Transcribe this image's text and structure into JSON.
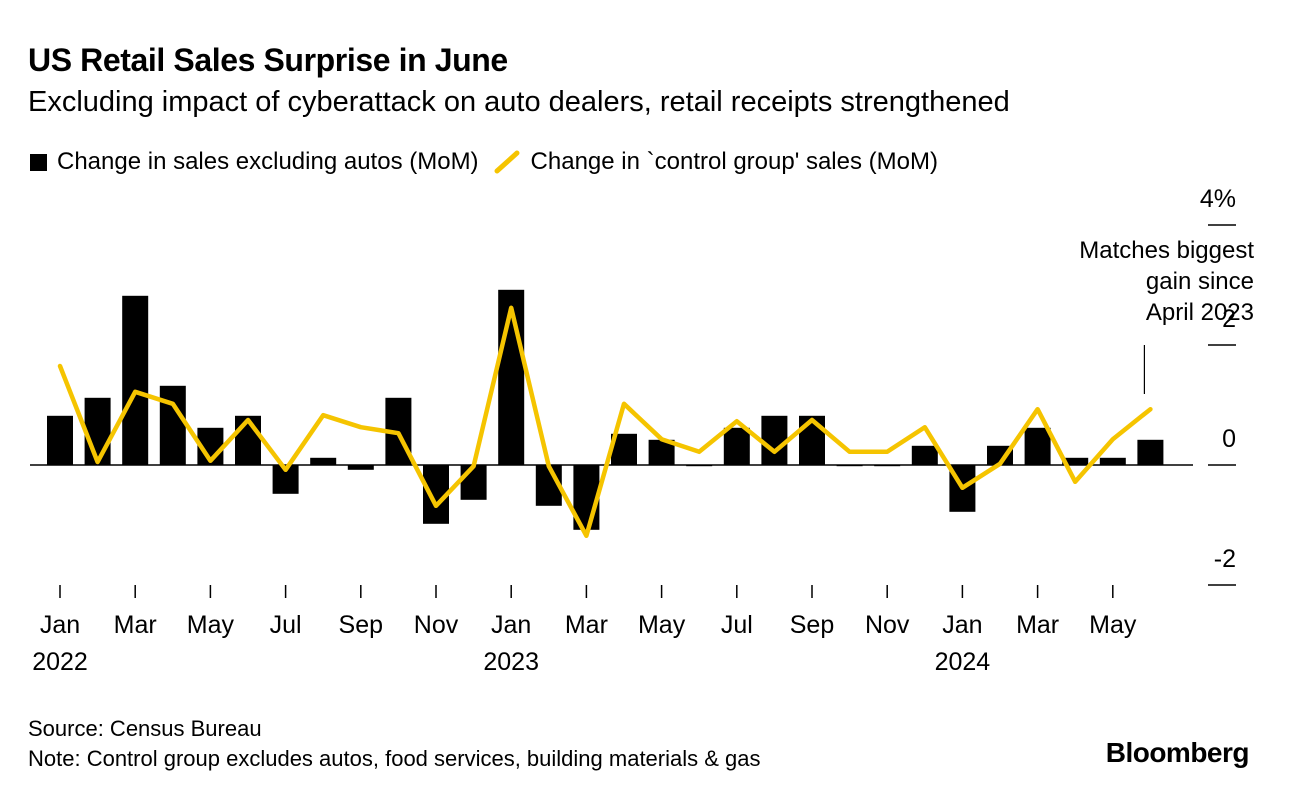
{
  "header": {
    "title": "US Retail Sales Surprise in June",
    "subtitle": "Excluding impact of cyberattack on auto dealers, retail receipts strengthened"
  },
  "legend": {
    "bars_label": "Change in sales excluding autos (MoM)",
    "line_label": "Change in `control group' sales (MoM)"
  },
  "footer": {
    "source": "Source: Census Bureau",
    "note": "Note: Control group excludes autos, food services, building materials & gas",
    "brand": "Bloomberg"
  },
  "colors": {
    "bars": "#000000",
    "line": "#f5c400",
    "axis": "#000000"
  },
  "chart_data": {
    "type": "bar+line",
    "title": "US Retail Sales Surprise in June",
    "subtitle": "Excluding impact of cyberattack on auto dealers, retail receipts strengthened",
    "ylim": [
      -2,
      4
    ],
    "yticks": [
      -2,
      0,
      2,
      4
    ],
    "ytick_labels": [
      "-2",
      "0",
      "2",
      "4%"
    ],
    "y_axis_side": "right",
    "categories": [
      "Jan 2022",
      "Feb 2022",
      "Mar 2022",
      "Apr 2022",
      "May 2022",
      "Jun 2022",
      "Jul 2022",
      "Aug 2022",
      "Sep 2022",
      "Oct 2022",
      "Nov 2022",
      "Dec 2022",
      "Jan 2023",
      "Feb 2023",
      "Mar 2023",
      "Apr 2023",
      "May 2023",
      "Jun 2023",
      "Jul 2023",
      "Aug 2023",
      "Sep 2023",
      "Oct 2023",
      "Nov 2023",
      "Dec 2023",
      "Jan 2024",
      "Feb 2024",
      "Mar 2024",
      "Apr 2024",
      "May 2024",
      "Jun 2024"
    ],
    "x_tick_labels": [
      {
        "index": 0,
        "month": "Jan",
        "year": "2022"
      },
      {
        "index": 2,
        "month": "Mar",
        "year": ""
      },
      {
        "index": 4,
        "month": "May",
        "year": ""
      },
      {
        "index": 6,
        "month": "Jul",
        "year": ""
      },
      {
        "index": 8,
        "month": "Sep",
        "year": ""
      },
      {
        "index": 10,
        "month": "Nov",
        "year": ""
      },
      {
        "index": 12,
        "month": "Jan",
        "year": "2023"
      },
      {
        "index": 14,
        "month": "Mar",
        "year": ""
      },
      {
        "index": 16,
        "month": "May",
        "year": ""
      },
      {
        "index": 18,
        "month": "Jul",
        "year": ""
      },
      {
        "index": 20,
        "month": "Sep",
        "year": ""
      },
      {
        "index": 22,
        "month": "Nov",
        "year": ""
      },
      {
        "index": 24,
        "month": "Jan",
        "year": "2024"
      },
      {
        "index": 26,
        "month": "Mar",
        "year": ""
      },
      {
        "index": 28,
        "month": "May",
        "year": ""
      }
    ],
    "series": [
      {
        "name": "Change in sales excluding autos (MoM)",
        "type": "bar",
        "values": [
          0.82,
          1.12,
          2.82,
          1.32,
          0.62,
          0.82,
          -0.48,
          0.12,
          -0.08,
          1.12,
          -0.98,
          -0.58,
          2.92,
          -0.68,
          -1.08,
          0.52,
          0.42,
          -0.02,
          0.62,
          0.82,
          0.82,
          -0.02,
          -0.02,
          0.32,
          -0.78,
          0.32,
          0.62,
          0.12,
          0.12,
          0.42
        ]
      },
      {
        "name": "Change in `control group' sales (MoM)",
        "type": "line",
        "values": [
          1.65,
          0.05,
          1.22,
          1.02,
          0.07,
          0.75,
          -0.08,
          0.83,
          0.63,
          0.53,
          -0.68,
          -0.02,
          2.62,
          -0.02,
          -1.18,
          1.02,
          0.43,
          0.22,
          0.73,
          0.22,
          0.75,
          0.22,
          0.22,
          0.63,
          -0.38,
          0.02,
          0.93,
          -0.28,
          0.43,
          0.93
        ]
      }
    ],
    "annotation": {
      "lines": [
        "Matches biggest",
        "gain since",
        "April 2023"
      ],
      "points_to_index": 29
    }
  }
}
